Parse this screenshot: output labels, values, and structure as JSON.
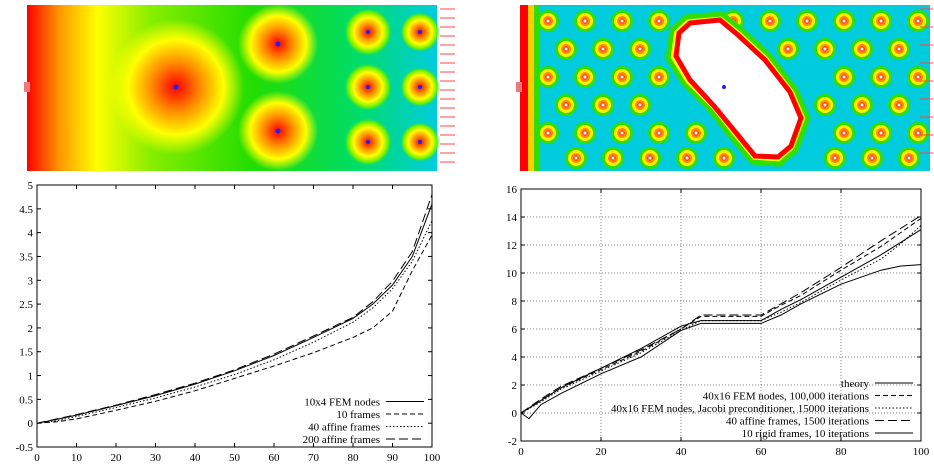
{
  "heatmaps": [
    {
      "colormap": [
        "#ff0000",
        "#ff8800",
        "#ffff00",
        "#00e000",
        "#00dddd",
        "#0044ff"
      ],
      "gradient": "left-to-right",
      "hotspots": 7
    },
    {
      "colormap": [
        "#ff0000",
        "#ff8800",
        "#ffff00",
        "#00e000",
        "#00dddd",
        "#0044ff"
      ],
      "hotspots": 40,
      "hole": true
    }
  ],
  "chart_data": [
    {
      "type": "line",
      "title": "",
      "xlabel": "",
      "ylabel": "",
      "xlim": [
        0,
        100
      ],
      "ylim": [
        -0.5,
        5
      ],
      "xticks": [
        "0",
        "10",
        "20",
        "30",
        "40",
        "50",
        "60",
        "70",
        "80",
        "90",
        "100"
      ],
      "yticks": [
        "-0.5",
        "0",
        "0.5",
        "1",
        "1.5",
        "2",
        "2.5",
        "3",
        "3.5",
        "4",
        "4.5",
        "5"
      ],
      "grid": false,
      "legend_position": "bottom-right",
      "x": [
        0,
        5,
        10,
        20,
        30,
        40,
        50,
        60,
        70,
        80,
        85,
        90,
        95,
        100
      ],
      "series": [
        {
          "name": "10x4 FEM nodes",
          "style": "solid",
          "values": [
            0,
            0.08,
            0.17,
            0.37,
            0.58,
            0.82,
            1.1,
            1.42,
            1.8,
            2.2,
            2.5,
            2.9,
            3.5,
            4.6
          ]
        },
        {
          "name": "10 frames",
          "style": "dashed",
          "values": [
            0,
            0.03,
            0.09,
            0.27,
            0.46,
            0.68,
            0.94,
            1.2,
            1.48,
            1.8,
            2.0,
            2.35,
            3.2,
            3.95
          ]
        },
        {
          "name": "40 affine frames",
          "style": "dotted",
          "values": [
            0,
            0.05,
            0.14,
            0.33,
            0.53,
            0.76,
            1.02,
            1.33,
            1.7,
            2.12,
            2.42,
            2.82,
            3.4,
            4.25
          ]
        },
        {
          "name": "200 affine frames",
          "style": "longdash",
          "values": [
            0,
            0.09,
            0.18,
            0.38,
            0.6,
            0.84,
            1.12,
            1.45,
            1.83,
            2.22,
            2.55,
            2.98,
            3.6,
            4.8
          ]
        }
      ]
    },
    {
      "type": "line",
      "title": "",
      "xlabel": "",
      "ylabel": "",
      "xlim": [
        0,
        100
      ],
      "ylim": [
        -2,
        16
      ],
      "xticks": [
        "0",
        "20",
        "40",
        "60",
        "80",
        "100"
      ],
      "yticks": [
        "-2",
        "0",
        "2",
        "4",
        "6",
        "8",
        "10",
        "12",
        "14",
        "16"
      ],
      "grid": true,
      "legend_position": "bottom-right",
      "x": [
        0,
        2,
        5,
        10,
        20,
        30,
        40,
        45,
        50,
        55,
        60,
        65,
        70,
        80,
        90,
        95,
        100
      ],
      "series": [
        {
          "name": "theory",
          "style": "solid",
          "values": [
            0,
            0.35,
            0.9,
            1.8,
            3.2,
            4.6,
            6.2,
            6.6,
            6.6,
            6.6,
            6.6,
            7.4,
            8.1,
            9.7,
            11.3,
            12.2,
            13.1
          ]
        },
        {
          "name": "40x16 FEM nodes, 100,000 iterations",
          "style": "dashed",
          "values": [
            0,
            0.35,
            0.9,
            1.8,
            3.1,
            4.4,
            6.0,
            6.9,
            6.9,
            6.9,
            6.9,
            7.7,
            8.4,
            10.2,
            11.9,
            12.9,
            13.9
          ]
        },
        {
          "name": "40x16 FEM nodes, Jacobi preconditioner, 15000 iterations",
          "style": "dotted",
          "values": [
            0,
            0.3,
            0.8,
            1.7,
            3.0,
            4.3,
            5.9,
            6.6,
            6.6,
            6.6,
            6.6,
            7.2,
            7.9,
            9.5,
            11.0,
            12.1,
            13.4
          ]
        },
        {
          "name": "40 affine frames, 1500 iterations",
          "style": "longdash",
          "values": [
            0,
            0.4,
            1.0,
            1.9,
            3.2,
            4.5,
            6.0,
            7.0,
            7.0,
            7.0,
            7.0,
            7.8,
            8.6,
            10.4,
            12.3,
            13.2,
            14.1
          ]
        },
        {
          "name": "10 rigid frames, 10 iterations",
          "style": "solid",
          "values": [
            0,
            -0.4,
            0.6,
            1.4,
            2.8,
            4.0,
            5.9,
            6.4,
            6.4,
            6.4,
            6.4,
            7.0,
            7.8,
            9.2,
            10.2,
            10.5,
            10.6
          ]
        }
      ]
    }
  ]
}
